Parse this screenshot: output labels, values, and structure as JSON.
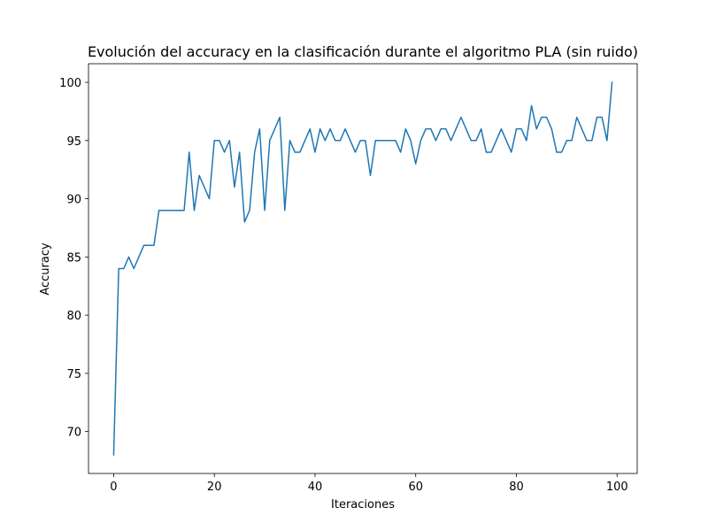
{
  "chart_data": {
    "type": "line",
    "title": "Evolución del accuracy en la clasificación durante el algoritmo PLA (sin ruido)",
    "xlabel": "Iteraciones",
    "ylabel": "Accuracy",
    "xlim": [
      -5,
      104
    ],
    "ylim": [
      66.4,
      101.6
    ],
    "xticks": [
      0,
      20,
      40,
      60,
      80,
      100
    ],
    "yticks": [
      70,
      75,
      80,
      85,
      90,
      95,
      100
    ],
    "grid": false,
    "series": [
      {
        "name": "accuracy",
        "color": "#1f77b4",
        "x": [
          0,
          1,
          2,
          3,
          4,
          5,
          6,
          7,
          8,
          9,
          10,
          11,
          12,
          13,
          14,
          15,
          16,
          17,
          18,
          19,
          20,
          21,
          22,
          23,
          24,
          25,
          26,
          27,
          28,
          29,
          30,
          31,
          32,
          33,
          34,
          35,
          36,
          37,
          38,
          39,
          40,
          41,
          42,
          43,
          44,
          45,
          46,
          47,
          48,
          49,
          50,
          51,
          52,
          53,
          54,
          55,
          56,
          57,
          58,
          59,
          60,
          61,
          62,
          63,
          64,
          65,
          66,
          67,
          68,
          69,
          70,
          71,
          72,
          73,
          74,
          75,
          76,
          77,
          78,
          79,
          80,
          81,
          82,
          83,
          84,
          85,
          86,
          87,
          88,
          89,
          90,
          91,
          92,
          93,
          94,
          95,
          96,
          97,
          98,
          99
        ],
        "values": [
          68,
          84,
          84,
          85,
          84,
          85,
          86,
          86,
          86,
          89,
          89,
          89,
          89,
          89,
          89,
          94,
          89,
          92,
          91,
          90,
          95,
          95,
          94,
          95,
          91,
          94,
          88,
          89,
          94,
          96,
          89,
          95,
          96,
          97,
          89,
          95,
          94,
          94,
          95,
          96,
          94,
          96,
          95,
          96,
          95,
          95,
          96,
          95,
          94,
          95,
          95,
          92,
          95,
          95,
          95,
          95,
          95,
          94,
          96,
          95,
          93,
          95,
          96,
          96,
          95,
          96,
          96,
          95,
          96,
          97,
          96,
          95,
          95,
          96,
          94,
          94,
          95,
          96,
          95,
          94,
          96,
          96,
          95,
          98,
          96,
          97,
          97,
          96,
          94,
          94,
          95,
          95,
          97,
          96,
          95,
          95,
          97,
          97,
          95,
          100
        ]
      }
    ]
  }
}
